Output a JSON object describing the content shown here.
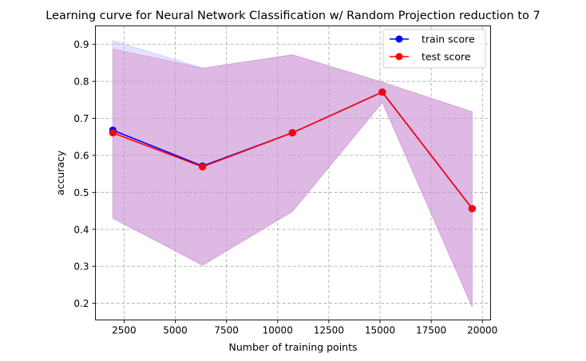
{
  "chart_data": {
    "type": "line",
    "title": "Learning curve for Neural Network Classification w/ Random Projection reduction to 7",
    "xlabel": "Number of training points",
    "ylabel": "accuracy",
    "xlim": [
      1100,
      20400
    ],
    "ylim": [
      0.155,
      0.95
    ],
    "x_ticks": [
      2500,
      5000,
      7500,
      10000,
      12500,
      15000,
      17500,
      20000
    ],
    "y_ticks": [
      0.2,
      0.3,
      0.4,
      0.5,
      0.6,
      0.7,
      0.8,
      0.9
    ],
    "grid": true,
    "legend_position": "upper right",
    "x": [
      1950,
      6330,
      10720,
      15110,
      19500
    ],
    "series": [
      {
        "name": "train score",
        "color": "#0000ff",
        "band_color": "#b0b0ff",
        "values": [
          0.668,
          0.571,
          0.661,
          0.771,
          0.456
        ],
        "band_upper": [
          0.91,
          0.836,
          0.872,
          0.798,
          0.718
        ],
        "band_lower": [
          0.428,
          0.305,
          0.448,
          0.743,
          0.19
        ]
      },
      {
        "name": "test score",
        "color": "#ff0000",
        "band_color": "#d890c8",
        "values": [
          0.661,
          0.569,
          0.661,
          0.771,
          0.456
        ],
        "band_upper": [
          0.888,
          0.836,
          0.872,
          0.798,
          0.718
        ],
        "band_lower": [
          0.432,
          0.302,
          0.448,
          0.743,
          0.19
        ]
      }
    ]
  }
}
